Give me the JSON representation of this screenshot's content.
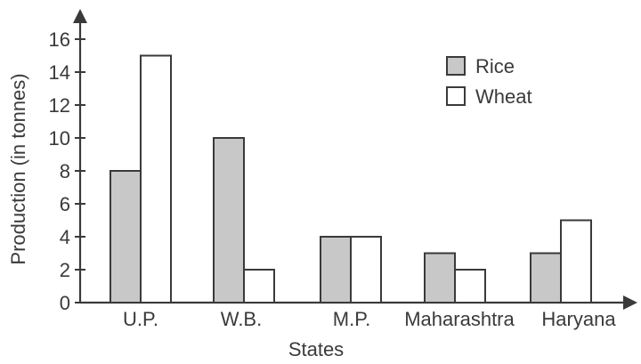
{
  "chart_data": {
    "type": "bar",
    "xlabel": "States",
    "ylabel": "Production (in tonnes)",
    "categories": [
      "U.P.",
      "W.B.",
      "M.P.",
      "Maharashtra",
      "Haryana"
    ],
    "series": [
      {
        "name": "Rice",
        "values": [
          8,
          10,
          4,
          3,
          3
        ],
        "color": "#c8c8c8"
      },
      {
        "name": "Wheat",
        "values": [
          15,
          2,
          4,
          2,
          5
        ],
        "color": "#ffffff"
      }
    ],
    "ylim": [
      0,
      16
    ],
    "yticks": [
      0,
      2,
      4,
      6,
      8,
      10,
      12,
      14,
      16
    ],
    "legend_position": "top-right",
    "grid": false
  }
}
